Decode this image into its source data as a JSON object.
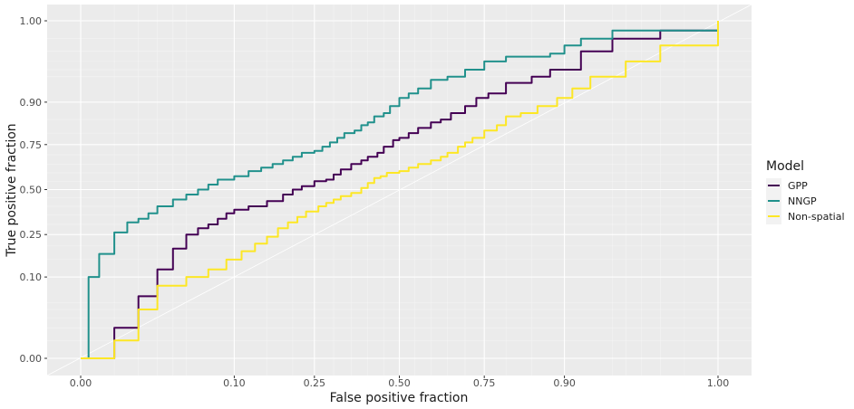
{
  "chart_data": {
    "type": "line",
    "xlabel": "False positive fraction",
    "ylabel": "True positive fraction",
    "x_ticks": [
      "0.00",
      "0.10",
      "0.25",
      "0.50",
      "0.75",
      "0.90",
      "1.00"
    ],
    "y_ticks": [
      "0.00",
      "0.10",
      "0.25",
      "0.50",
      "0.75",
      "0.90",
      "1.00"
    ],
    "xlim": [
      -0.05,
      1.05
    ],
    "ylim": [
      -0.05,
      1.05
    ],
    "grid": true,
    "diagonal_reference": true,
    "legend": {
      "title": "Model",
      "position": "right"
    },
    "series": [
      {
        "name": "GPP",
        "color": "#440154",
        "points": [
          [
            0,
            0
          ],
          [
            0.01,
            0.02
          ],
          [
            0.02,
            0.06
          ],
          [
            0.03,
            0.12
          ],
          [
            0.04,
            0.19
          ],
          [
            0.05,
            0.25
          ],
          [
            0.06,
            0.28
          ],
          [
            0.07,
            0.3
          ],
          [
            0.08,
            0.33
          ],
          [
            0.09,
            0.36
          ],
          [
            0.1,
            0.38
          ],
          [
            0.12,
            0.4
          ],
          [
            0.15,
            0.43
          ],
          [
            0.18,
            0.47
          ],
          [
            0.2,
            0.5
          ],
          [
            0.22,
            0.52
          ],
          [
            0.25,
            0.55
          ],
          [
            0.28,
            0.56
          ],
          [
            0.3,
            0.59
          ],
          [
            0.32,
            0.62
          ],
          [
            0.35,
            0.65
          ],
          [
            0.38,
            0.67
          ],
          [
            0.4,
            0.69
          ],
          [
            0.43,
            0.71
          ],
          [
            0.45,
            0.74
          ],
          [
            0.48,
            0.77
          ],
          [
            0.5,
            0.78
          ],
          [
            0.53,
            0.8
          ],
          [
            0.56,
            0.82
          ],
          [
            0.6,
            0.84
          ],
          [
            0.63,
            0.85
          ],
          [
            0.66,
            0.87
          ],
          [
            0.7,
            0.89
          ],
          [
            0.73,
            0.91
          ],
          [
            0.76,
            0.92
          ],
          [
            0.8,
            0.94
          ],
          [
            0.85,
            0.95
          ],
          [
            0.88,
            0.96
          ],
          [
            0.9,
            0.96
          ],
          [
            0.92,
            0.98
          ],
          [
            0.95,
            0.99
          ],
          [
            0.98,
            0.995
          ],
          [
            1.0,
            1.0
          ]
        ]
      },
      {
        "name": "NNGP",
        "color": "#21918c",
        "points": [
          [
            0,
            0
          ],
          [
            0.002,
            0.1
          ],
          [
            0.005,
            0.17
          ],
          [
            0.01,
            0.26
          ],
          [
            0.015,
            0.31
          ],
          [
            0.02,
            0.33
          ],
          [
            0.025,
            0.36
          ],
          [
            0.03,
            0.4
          ],
          [
            0.04,
            0.44
          ],
          [
            0.05,
            0.47
          ],
          [
            0.06,
            0.5
          ],
          [
            0.07,
            0.53
          ],
          [
            0.08,
            0.56
          ],
          [
            0.1,
            0.58
          ],
          [
            0.12,
            0.61
          ],
          [
            0.14,
            0.63
          ],
          [
            0.16,
            0.65
          ],
          [
            0.18,
            0.67
          ],
          [
            0.2,
            0.69
          ],
          [
            0.22,
            0.71
          ],
          [
            0.25,
            0.72
          ],
          [
            0.27,
            0.74
          ],
          [
            0.29,
            0.76
          ],
          [
            0.31,
            0.78
          ],
          [
            0.33,
            0.8
          ],
          [
            0.36,
            0.81
          ],
          [
            0.38,
            0.83
          ],
          [
            0.4,
            0.84
          ],
          [
            0.42,
            0.86
          ],
          [
            0.45,
            0.87
          ],
          [
            0.47,
            0.89
          ],
          [
            0.5,
            0.91
          ],
          [
            0.53,
            0.92
          ],
          [
            0.56,
            0.93
          ],
          [
            0.6,
            0.945
          ],
          [
            0.65,
            0.95
          ],
          [
            0.7,
            0.96
          ],
          [
            0.75,
            0.97
          ],
          [
            0.8,
            0.975
          ],
          [
            0.85,
            0.975
          ],
          [
            0.88,
            0.978
          ],
          [
            0.9,
            0.985
          ],
          [
            0.92,
            0.99
          ],
          [
            0.95,
            0.995
          ],
          [
            1.0,
            1.0
          ]
        ]
      },
      {
        "name": "Non-spatial",
        "color": "#fde725",
        "points": [
          [
            0,
            0
          ],
          [
            0.01,
            0.01
          ],
          [
            0.02,
            0.04
          ],
          [
            0.03,
            0.08
          ],
          [
            0.05,
            0.1
          ],
          [
            0.07,
            0.12
          ],
          [
            0.09,
            0.15
          ],
          [
            0.11,
            0.18
          ],
          [
            0.13,
            0.21
          ],
          [
            0.15,
            0.24
          ],
          [
            0.17,
            0.28
          ],
          [
            0.19,
            0.31
          ],
          [
            0.21,
            0.34
          ],
          [
            0.23,
            0.37
          ],
          [
            0.26,
            0.4
          ],
          [
            0.28,
            0.42
          ],
          [
            0.3,
            0.44
          ],
          [
            0.32,
            0.46
          ],
          [
            0.35,
            0.48
          ],
          [
            0.38,
            0.51
          ],
          [
            0.4,
            0.54
          ],
          [
            0.42,
            0.57
          ],
          [
            0.44,
            0.58
          ],
          [
            0.46,
            0.6
          ],
          [
            0.5,
            0.61
          ],
          [
            0.53,
            0.63
          ],
          [
            0.56,
            0.65
          ],
          [
            0.6,
            0.67
          ],
          [
            0.63,
            0.69
          ],
          [
            0.65,
            0.71
          ],
          [
            0.68,
            0.74
          ],
          [
            0.7,
            0.76
          ],
          [
            0.72,
            0.78
          ],
          [
            0.75,
            0.81
          ],
          [
            0.78,
            0.83
          ],
          [
            0.8,
            0.86
          ],
          [
            0.83,
            0.87
          ],
          [
            0.86,
            0.89
          ],
          [
            0.89,
            0.91
          ],
          [
            0.91,
            0.93
          ],
          [
            0.93,
            0.95
          ],
          [
            0.96,
            0.97
          ],
          [
            0.98,
            0.985
          ],
          [
            1.0,
            1.0
          ]
        ]
      }
    ]
  }
}
